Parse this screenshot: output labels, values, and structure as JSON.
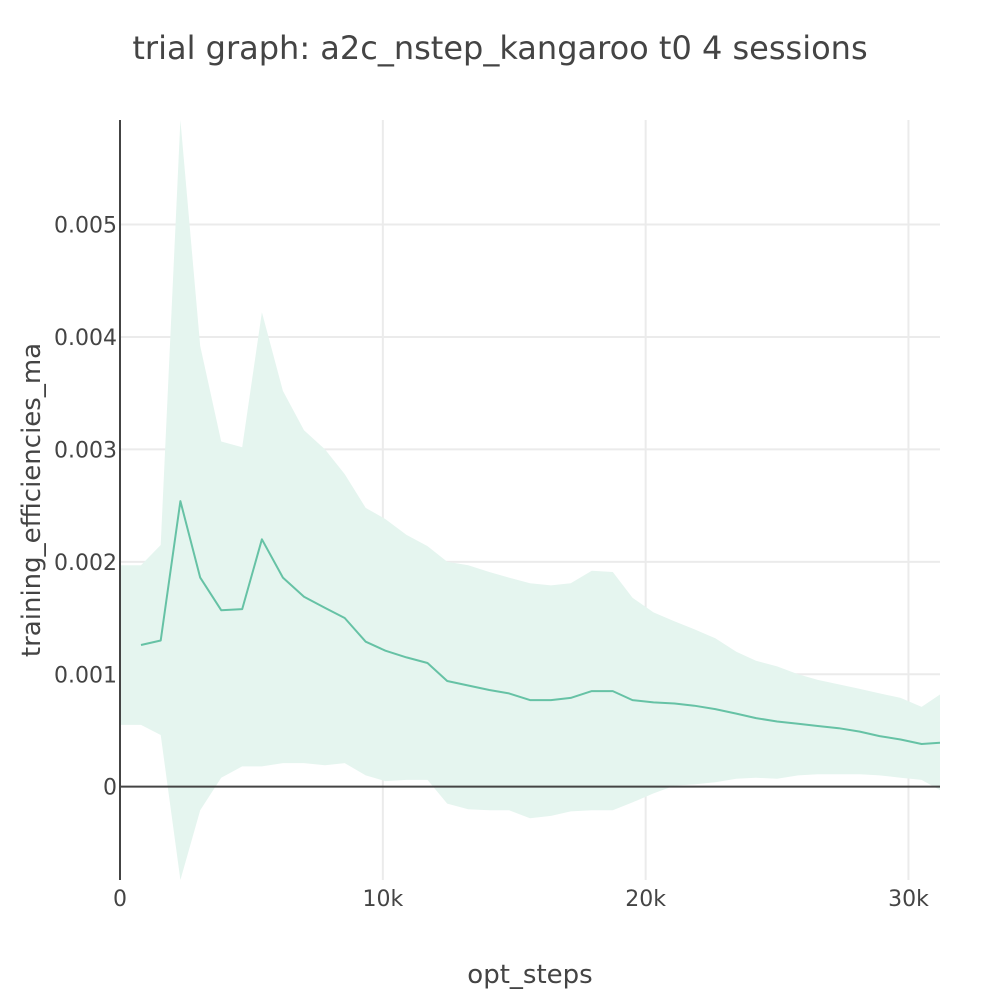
{
  "chart_data": {
    "type": "line",
    "title": "trial graph: a2c_nstep_kangaroo t0 4 sessions",
    "xlabel": "opt_steps",
    "ylabel": "training_efficiencies_ma",
    "xlim": [
      0,
      31200
    ],
    "ylim": [
      -0.00083,
      0.00593
    ],
    "x_ticks": [
      {
        "value": 0,
        "label": "0"
      },
      {
        "value": 10000,
        "label": "10k"
      },
      {
        "value": 20000,
        "label": "20k"
      },
      {
        "value": 30000,
        "label": "30k"
      }
    ],
    "y_ticks": [
      {
        "value": 0,
        "label": "0"
      },
      {
        "value": 0.001,
        "label": "0.001"
      },
      {
        "value": 0.002,
        "label": "0.002"
      },
      {
        "value": 0.003,
        "label": "0.003"
      },
      {
        "value": 0.004,
        "label": "0.004"
      },
      {
        "value": 0.005,
        "label": "0.005"
      }
    ],
    "grid": true,
    "legend": "none",
    "series": [
      {
        "color": "#66c2a5",
        "band_color": "#e5f5ef",
        "x": [
          0,
          800,
          1550,
          2300,
          3050,
          3850,
          4650,
          5400,
          6200,
          7000,
          7800,
          8550,
          9350,
          10100,
          10900,
          11700,
          12450,
          13250,
          14050,
          14800,
          15600,
          16400,
          17150,
          17950,
          18750,
          19500,
          20300,
          21100,
          21850,
          22650,
          23450,
          24200,
          25000,
          25800,
          26550,
          27350,
          28150,
          28900,
          29700,
          30500,
          31200
        ],
        "y": [
          null,
          0.00126,
          0.0013,
          0.00254,
          0.00186,
          0.00157,
          0.00158,
          0.0022,
          0.00186,
          0.00169,
          0.00159,
          0.0015,
          0.00129,
          0.00121,
          0.00115,
          0.0011,
          0.00094,
          0.0009,
          0.00086,
          0.00083,
          0.00077,
          0.00077,
          0.00079,
          0.00085,
          0.00085,
          0.00077,
          0.00075,
          0.00074,
          0.00072,
          0.00069,
          0.00065,
          0.00061,
          0.00058,
          0.00056,
          0.00054,
          0.00052,
          0.00049,
          0.00045,
          0.00042,
          0.00038,
          0.00039
        ],
        "upper": [
          0.00197,
          0.00197,
          0.00215,
          0.00593,
          0.00392,
          0.00307,
          0.00302,
          0.00422,
          0.00352,
          0.00317,
          0.003,
          0.00278,
          0.00248,
          0.00238,
          0.00224,
          0.00214,
          0.002,
          0.00197,
          0.00191,
          0.00186,
          0.00181,
          0.00179,
          0.00181,
          0.00192,
          0.00191,
          0.00168,
          0.00155,
          0.00147,
          0.0014,
          0.00132,
          0.0012,
          0.00112,
          0.00107,
          0.001,
          0.00095,
          0.00091,
          0.00087,
          0.00083,
          0.00079,
          0.00071,
          0.00082
        ],
        "lower": [
          0.00055,
          0.00055,
          0.00046,
          -0.00083,
          -0.00021,
          8e-05,
          0.00018,
          0.00018,
          0.00021,
          0.00021,
          0.00019,
          0.00021,
          0.0001,
          5e-05,
          6e-05,
          6e-05,
          -0.00015,
          -0.0002,
          -0.00021,
          -0.00021,
          -0.00028,
          -0.00026,
          -0.00022,
          -0.00021,
          -0.00021,
          -0.00014,
          -6e-05,
          1e-05,
          2e-05,
          4e-05,
          7e-05,
          8e-05,
          7e-05,
          0.0001,
          0.00011,
          0.00011,
          0.00011,
          0.0001,
          8e-05,
          6e-05,
          -3e-05
        ]
      }
    ]
  }
}
